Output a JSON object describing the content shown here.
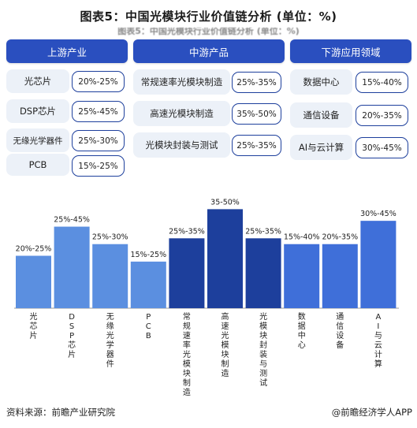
{
  "title": "图表5：中国光模块行业价值链分析 (单位：%)",
  "ghost_title": "图表5：中国光模块行业价值链分析 (单位：%)",
  "columns": [
    {
      "header": "上游产业",
      "items": [
        {
          "label": "光芯片",
          "range": "20%-25%"
        },
        {
          "label": "DSP芯片",
          "range": "25%-45%"
        },
        {
          "label": "无缘光学器件",
          "range": "25%-30%"
        },
        {
          "label": "PCB",
          "range": "15%-25%"
        }
      ]
    },
    {
      "header": "中游产品",
      "items": [
        {
          "label": "常规速率光模块制造",
          "range": "25%-35%"
        },
        {
          "label": "高速光模块制造",
          "range": "35%-50%"
        },
        {
          "label": "光模块封装与测试",
          "range": "25%-35%"
        }
      ]
    },
    {
      "header": "下游应用领域",
      "items": [
        {
          "label": "数据中心",
          "range": "15%-40%"
        },
        {
          "label": "通信设备",
          "range": "20%-35%"
        },
        {
          "label": "AI与云计算",
          "range": "30%-45%"
        }
      ]
    }
  ],
  "chart_data": {
    "type": "bar",
    "categories": [
      "光芯片",
      "DSP芯片",
      "无缘光学器件",
      "PCB",
      "常规速率光模块制造",
      "高速光模块制造",
      "光模块封装与测试",
      "数据中心",
      "通信设备",
      "AI与云计算"
    ],
    "series": [
      {
        "values": [
          22.5,
          35,
          27.5,
          20,
          30,
          42.5,
          30,
          27.5,
          27.5,
          37.5
        ]
      }
    ],
    "data_labels": [
      "20%-25%",
      "25%-45%",
      "25%-30%",
      "15%-25%",
      "25%-35%",
      "35-50%",
      "25%-35%",
      "15%-40%",
      "20%-35%",
      "30%-45%"
    ],
    "colors": [
      "#5b8fe0",
      "#5b8fe0",
      "#5b8fe0",
      "#5b8fe0",
      "#1d3f9c",
      "#1d3f9c",
      "#1d3f9c",
      "#3f6fd9",
      "#3f6fd9",
      "#3f6fd9"
    ],
    "ylim": [
      0,
      45
    ],
    "grid": false,
    "legend": "none"
  },
  "footer": {
    "source": "资料来源：前瞻产业研究院",
    "brand": "@前瞻经济学人APP"
  }
}
